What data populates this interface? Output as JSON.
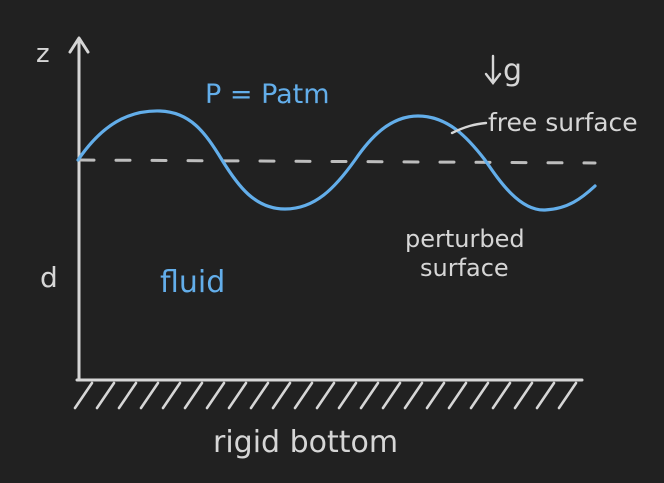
{
  "labels": {
    "z_axis": "z",
    "depth": "d",
    "pressure": "P = Patm",
    "gravity": "g",
    "free_surface": "free surface",
    "perturbed_line1": "perturbed",
    "perturbed_line2": "surface",
    "fluid": "fluid",
    "bottom": "rigid bottom"
  },
  "colors": {
    "background": "#212121",
    "ink": "#d6d6d6",
    "accent": "#63aeea",
    "dashed": "#bdbdbd"
  }
}
